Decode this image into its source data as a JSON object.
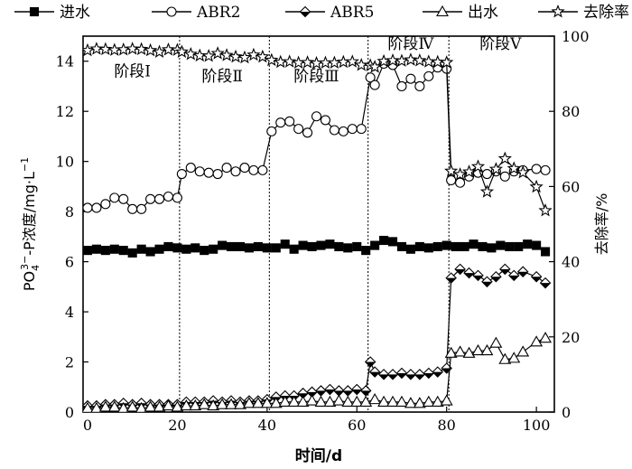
{
  "chart_data": {
    "type": "line",
    "xlabel": "时间/d",
    "ylabel": "PO4³⁻-P浓度/mg·L⁻¹",
    "ylabel_parts": {
      "base": "PO",
      "sub": "4",
      "sup": "3−",
      "rest": "-P浓度/mg·L",
      "rest_sup": "−1"
    },
    "y2label": "去除率/%",
    "xlim": [
      -1,
      104
    ],
    "ylim": [
      0,
      15
    ],
    "y2lim": [
      0,
      100
    ],
    "xticks": [
      0,
      20,
      40,
      60,
      80,
      100
    ],
    "yticks": [
      0,
      2,
      4,
      6,
      8,
      10,
      12,
      14
    ],
    "y2ticks": [
      0,
      20,
      40,
      60,
      80,
      100
    ],
    "stage_dividers": [
      20.5,
      40.5,
      62.5,
      80.5
    ],
    "stages": [
      {
        "label": "阶段Ⅰ",
        "x": 10,
        "y": 13.4
      },
      {
        "label": "阶段Ⅱ",
        "x": 30,
        "y": 13.2
      },
      {
        "label": "阶段Ⅲ",
        "x": 51,
        "y": 13.2
      },
      {
        "label": "阶段Ⅳ",
        "x": 72,
        "y": 14.5
      },
      {
        "label": "阶段Ⅴ",
        "x": 92,
        "y": 14.5
      }
    ],
    "legend_position": "top",
    "series": [
      {
        "name": "进水",
        "marker": "square",
        "axis": "left",
        "points": [
          [
            0,
            6.45
          ],
          [
            2,
            6.5
          ],
          [
            4,
            6.45
          ],
          [
            6,
            6.5
          ],
          [
            8,
            6.45
          ],
          [
            10,
            6.35
          ],
          [
            12,
            6.5
          ],
          [
            14,
            6.4
          ],
          [
            16,
            6.5
          ],
          [
            18,
            6.6
          ],
          [
            20,
            6.55
          ],
          [
            22,
            6.5
          ],
          [
            24,
            6.55
          ],
          [
            26,
            6.45
          ],
          [
            28,
            6.5
          ],
          [
            30,
            6.65
          ],
          [
            32,
            6.6
          ],
          [
            34,
            6.6
          ],
          [
            36,
            6.55
          ],
          [
            38,
            6.6
          ],
          [
            40,
            6.55
          ],
          [
            42,
            6.55
          ],
          [
            44,
            6.7
          ],
          [
            46,
            6.5
          ],
          [
            48,
            6.65
          ],
          [
            50,
            6.6
          ],
          [
            52,
            6.65
          ],
          [
            54,
            6.7
          ],
          [
            56,
            6.6
          ],
          [
            58,
            6.55
          ],
          [
            60,
            6.6
          ],
          [
            62,
            6.45
          ],
          [
            64,
            6.65
          ],
          [
            66,
            6.85
          ],
          [
            68,
            6.8
          ],
          [
            70,
            6.6
          ],
          [
            72,
            6.5
          ],
          [
            74,
            6.6
          ],
          [
            76,
            6.55
          ],
          [
            78,
            6.6
          ],
          [
            80,
            6.65
          ],
          [
            82,
            6.6
          ],
          [
            84,
            6.6
          ],
          [
            86,
            6.7
          ],
          [
            88,
            6.6
          ],
          [
            90,
            6.55
          ],
          [
            92,
            6.65
          ],
          [
            94,
            6.6
          ],
          [
            96,
            6.6
          ],
          [
            98,
            6.7
          ],
          [
            100,
            6.65
          ],
          [
            102,
            6.4
          ]
        ]
      },
      {
        "name": "ABR2",
        "marker": "circle",
        "axis": "left",
        "points": [
          [
            0,
            8.15
          ],
          [
            2,
            8.15
          ],
          [
            4,
            8.3
          ],
          [
            6,
            8.55
          ],
          [
            8,
            8.5
          ],
          [
            10,
            8.1
          ],
          [
            12,
            8.1
          ],
          [
            14,
            8.5
          ],
          [
            16,
            8.5
          ],
          [
            18,
            8.6
          ],
          [
            20,
            8.55
          ],
          [
            21,
            9.5
          ],
          [
            23,
            9.75
          ],
          [
            25,
            9.6
          ],
          [
            27,
            9.55
          ],
          [
            29,
            9.5
          ],
          [
            31,
            9.75
          ],
          [
            33,
            9.6
          ],
          [
            35,
            9.75
          ],
          [
            37,
            9.65
          ],
          [
            39,
            9.65
          ],
          [
            41,
            11.2
          ],
          [
            43,
            11.55
          ],
          [
            45,
            11.6
          ],
          [
            47,
            11.3
          ],
          [
            49,
            11.15
          ],
          [
            51,
            11.8
          ],
          [
            53,
            11.65
          ],
          [
            55,
            11.25
          ],
          [
            57,
            11.2
          ],
          [
            59,
            11.3
          ],
          [
            61,
            11.3
          ],
          [
            63,
            13.35
          ],
          [
            64,
            13.05
          ],
          [
            66,
            13.9
          ],
          [
            68,
            13.85
          ],
          [
            70,
            13.0
          ],
          [
            72,
            13.3
          ],
          [
            74,
            13.0
          ],
          [
            76,
            13.4
          ],
          [
            78,
            13.75
          ],
          [
            80,
            13.7
          ],
          [
            81,
            9.25
          ],
          [
            83,
            9.15
          ],
          [
            85,
            9.4
          ],
          [
            87,
            9.55
          ],
          [
            89,
            9.5
          ],
          [
            91,
            9.6
          ],
          [
            93,
            9.4
          ],
          [
            95,
            9.6
          ],
          [
            97,
            9.65
          ],
          [
            100,
            9.7
          ],
          [
            102,
            9.65
          ]
        ]
      },
      {
        "name": "ABR5",
        "marker": "diamond",
        "axis": "left",
        "points": [
          [
            0,
            0.25
          ],
          [
            2,
            0.25
          ],
          [
            4,
            0.3
          ],
          [
            6,
            0.3
          ],
          [
            8,
            0.35
          ],
          [
            10,
            0.3
          ],
          [
            12,
            0.35
          ],
          [
            14,
            0.3
          ],
          [
            16,
            0.3
          ],
          [
            18,
            0.3
          ],
          [
            20,
            0.3
          ],
          [
            22,
            0.4
          ],
          [
            24,
            0.4
          ],
          [
            26,
            0.4
          ],
          [
            28,
            0.45
          ],
          [
            30,
            0.4
          ],
          [
            32,
            0.45
          ],
          [
            34,
            0.4
          ],
          [
            36,
            0.45
          ],
          [
            38,
            0.45
          ],
          [
            40,
            0.5
          ],
          [
            42,
            0.6
          ],
          [
            44,
            0.65
          ],
          [
            46,
            0.65
          ],
          [
            48,
            0.75
          ],
          [
            50,
            0.8
          ],
          [
            52,
            0.85
          ],
          [
            54,
            0.9
          ],
          [
            56,
            0.85
          ],
          [
            58,
            0.85
          ],
          [
            60,
            0.9
          ],
          [
            62,
            0.85
          ],
          [
            63,
            2.0
          ],
          [
            64,
            1.6
          ],
          [
            66,
            1.5
          ],
          [
            68,
            1.5
          ],
          [
            70,
            1.55
          ],
          [
            72,
            1.5
          ],
          [
            74,
            1.5
          ],
          [
            76,
            1.55
          ],
          [
            78,
            1.6
          ],
          [
            80,
            1.75
          ],
          [
            81,
            5.35
          ],
          [
            83,
            5.7
          ],
          [
            85,
            5.55
          ],
          [
            87,
            5.45
          ],
          [
            89,
            5.2
          ],
          [
            91,
            5.4
          ],
          [
            93,
            5.7
          ],
          [
            95,
            5.45
          ],
          [
            97,
            5.6
          ],
          [
            100,
            5.4
          ],
          [
            102,
            5.15
          ]
        ]
      },
      {
        "name": "出水",
        "marker": "triangle",
        "axis": "left",
        "points": [
          [
            0,
            0.15
          ],
          [
            2,
            0.15
          ],
          [
            4,
            0.2
          ],
          [
            6,
            0.2
          ],
          [
            8,
            0.15
          ],
          [
            10,
            0.2
          ],
          [
            12,
            0.15
          ],
          [
            14,
            0.2
          ],
          [
            16,
            0.2
          ],
          [
            18,
            0.25
          ],
          [
            20,
            0.2
          ],
          [
            22,
            0.25
          ],
          [
            24,
            0.25
          ],
          [
            26,
            0.3
          ],
          [
            28,
            0.25
          ],
          [
            30,
            0.3
          ],
          [
            32,
            0.3
          ],
          [
            34,
            0.3
          ],
          [
            36,
            0.35
          ],
          [
            38,
            0.35
          ],
          [
            40,
            0.35
          ],
          [
            42,
            0.35
          ],
          [
            44,
            0.4
          ],
          [
            46,
            0.4
          ],
          [
            48,
            0.4
          ],
          [
            50,
            0.45
          ],
          [
            52,
            0.4
          ],
          [
            54,
            0.4
          ],
          [
            56,
            0.45
          ],
          [
            58,
            0.4
          ],
          [
            60,
            0.4
          ],
          [
            62,
            0.4
          ],
          [
            64,
            0.5
          ],
          [
            66,
            0.4
          ],
          [
            68,
            0.4
          ],
          [
            70,
            0.4
          ],
          [
            72,
            0.35
          ],
          [
            74,
            0.35
          ],
          [
            76,
            0.4
          ],
          [
            78,
            0.4
          ],
          [
            80,
            0.45
          ],
          [
            81,
            2.35
          ],
          [
            83,
            2.4
          ],
          [
            85,
            2.35
          ],
          [
            87,
            2.45
          ],
          [
            89,
            2.45
          ],
          [
            91,
            2.75
          ],
          [
            93,
            2.1
          ],
          [
            95,
            2.15
          ],
          [
            97,
            2.4
          ],
          [
            100,
            2.8
          ],
          [
            102,
            2.95
          ]
        ]
      },
      {
        "name": "去除率",
        "marker": "star",
        "axis": "right",
        "points": [
          [
            0,
            96.2
          ],
          [
            2,
            96.6
          ],
          [
            4,
            96.5
          ],
          [
            6,
            96.3
          ],
          [
            8,
            96.4
          ],
          [
            10,
            96.6
          ],
          [
            12,
            96.5
          ],
          [
            14,
            96.2
          ],
          [
            16,
            95.8
          ],
          [
            18,
            96.4
          ],
          [
            20,
            96.3
          ],
          [
            21,
            95.8
          ],
          [
            23,
            95.2
          ],
          [
            25,
            94.8
          ],
          [
            27,
            94.7
          ],
          [
            29,
            95.4
          ],
          [
            31,
            94.9
          ],
          [
            33,
            94.5
          ],
          [
            35,
            94.3
          ],
          [
            37,
            95.0
          ],
          [
            39,
            94.5
          ],
          [
            41,
            93.6
          ],
          [
            43,
            93.1
          ],
          [
            45,
            93.2
          ],
          [
            47,
            92.9
          ],
          [
            49,
            93.0
          ],
          [
            51,
            92.8
          ],
          [
            53,
            92.9
          ],
          [
            55,
            92.9
          ],
          [
            57,
            93.1
          ],
          [
            59,
            93.2
          ],
          [
            61,
            92.3
          ],
          [
            63,
            92.2
          ],
          [
            64,
            91.8
          ],
          [
            66,
            93.3
          ],
          [
            68,
            93.5
          ],
          [
            70,
            93.4
          ],
          [
            72,
            93.7
          ],
          [
            74,
            93.5
          ],
          [
            76,
            93.2
          ],
          [
            78,
            93.1
          ],
          [
            80,
            93.0
          ],
          [
            81,
            64.1
          ],
          [
            83,
            63.2
          ],
          [
            85,
            63.9
          ],
          [
            87,
            65.3
          ],
          [
            89,
            58.6
          ],
          [
            91,
            64.6
          ],
          [
            93,
            67.4
          ],
          [
            95,
            64.8
          ],
          [
            97,
            63.7
          ],
          [
            100,
            59.9
          ],
          [
            102,
            53.6
          ]
        ]
      }
    ]
  }
}
